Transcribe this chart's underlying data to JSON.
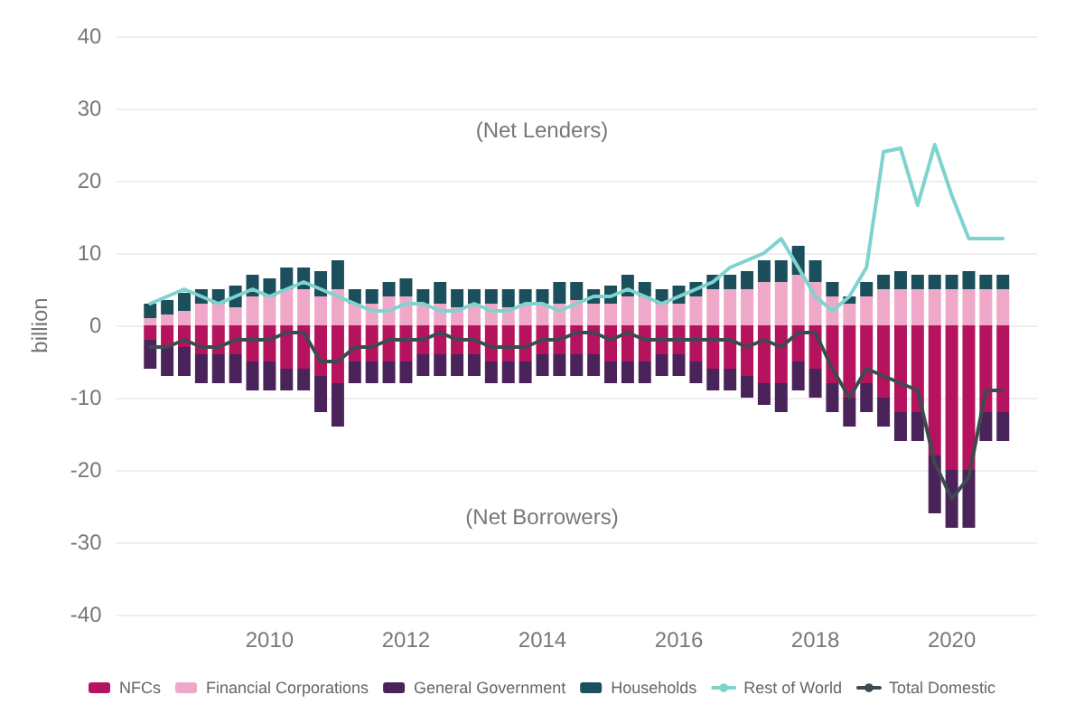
{
  "chart_data": {
    "type": "bar",
    "stacked": true,
    "ylabel": "billion",
    "x": [
      2008.25,
      2008.5,
      2008.75,
      2009,
      2009.25,
      2009.5,
      2009.75,
      2010,
      2010.25,
      2010.5,
      2010.75,
      2011,
      2011.25,
      2011.5,
      2011.75,
      2012,
      2012.25,
      2012.5,
      2012.75,
      2013,
      2013.25,
      2013.5,
      2013.75,
      2014,
      2014.25,
      2014.5,
      2014.75,
      2015,
      2015.25,
      2015.5,
      2015.75,
      2016,
      2016.25,
      2016.5,
      2016.75,
      2017,
      2017.25,
      2017.5,
      2017.75,
      2018,
      2018.25,
      2018.5,
      2018.75,
      2019,
      2019.25,
      2019.5,
      2019.75,
      2020,
      2020.25,
      2020.5,
      2020.75
    ],
    "series": [
      {
        "name": "NFCs",
        "color": "#b5135e",
        "values": [
          -2,
          -3,
          -3,
          -4,
          -4,
          -4,
          -5,
          -5,
          -6,
          -6,
          -7,
          -8,
          -5,
          -5,
          -5,
          -5,
          -4,
          -4,
          -4,
          -4,
          -5,
          -5,
          -5,
          -4,
          -4,
          -4,
          -4,
          -5,
          -5,
          -5,
          -4,
          -4,
          -5,
          -6,
          -6,
          -7,
          -8,
          -8,
          -5,
          -6,
          -8,
          -10,
          -8,
          -10,
          -12,
          -12,
          -18,
          -20,
          -20,
          -12,
          -12
        ]
      },
      {
        "name": "Financial Corporations",
        "color": "#f0a8c8",
        "values": [
          1,
          1.5,
          2,
          3,
          3,
          2.5,
          4,
          4,
          5,
          5,
          4,
          5,
          3,
          3,
          4,
          4,
          3,
          3,
          2.5,
          3,
          3,
          2.5,
          3,
          3,
          3,
          3.5,
          3,
          3,
          4,
          4,
          3,
          3,
          4,
          5,
          5,
          5,
          6,
          6,
          7,
          6,
          4,
          3,
          4,
          5,
          5,
          5,
          5,
          5,
          5,
          5,
          5
        ]
      },
      {
        "name": "General Government",
        "color": "#4a235a",
        "values": [
          -4,
          -4,
          -4,
          -4,
          -4,
          -4,
          -4,
          -4,
          -3,
          -3,
          -5,
          -6,
          -3,
          -3,
          -3,
          -3,
          -3,
          -3,
          -3,
          -3,
          -3,
          -3,
          -3,
          -3,
          -3,
          -3,
          -3,
          -3,
          -3,
          -3,
          -3,
          -3,
          -3,
          -3,
          -3,
          -3,
          -3,
          -4,
          -4,
          -4,
          -4,
          -4,
          -4,
          -4,
          -4,
          -4,
          -8,
          -8,
          -8,
          -4,
          -4
        ]
      },
      {
        "name": "Households",
        "color": "#1b4f5c",
        "values": [
          2,
          2,
          2.5,
          2,
          2,
          3,
          3,
          2.5,
          3,
          3,
          3.5,
          4,
          2,
          2,
          2,
          2.5,
          2,
          3,
          2.5,
          2,
          2,
          2.5,
          2,
          2,
          3,
          2.5,
          2,
          2.5,
          3,
          2,
          2,
          2.5,
          2,
          2,
          2,
          2.5,
          3,
          3,
          4,
          3,
          2,
          1,
          2,
          2,
          2.5,
          2,
          2,
          2,
          2.5,
          2,
          2
        ]
      },
      {
        "name": "Rest of World",
        "type": "line",
        "color": "#7fd3cf",
        "values": [
          3,
          4,
          5,
          4,
          3,
          4,
          5,
          4,
          5,
          6,
          5,
          4,
          3,
          2,
          2,
          3,
          3,
          2,
          2,
          3,
          2,
          2,
          3,
          3,
          2,
          3,
          4,
          4,
          5,
          4,
          3,
          4,
          5,
          6,
          8,
          9,
          10,
          12,
          8,
          4,
          2,
          4,
          8,
          24,
          24.5,
          16.6,
          25,
          18,
          12,
          12,
          12
        ]
      },
      {
        "name": "Total Domestic",
        "type": "line",
        "color": "#3d4a4f",
        "values": [
          -3,
          -3,
          -2,
          -3,
          -3,
          -2,
          -2,
          -2,
          -1,
          -1,
          -5,
          -5,
          -3,
          -3,
          -2,
          -2,
          -2,
          -1,
          -2,
          -2,
          -3,
          -3,
          -3,
          -2,
          -2,
          -1,
          -1,
          -2,
          -1,
          -2,
          -2,
          -2,
          -2,
          -2,
          -2,
          -3,
          -2,
          -3,
          -1,
          -1,
          -6,
          -10,
          -6,
          -7,
          -8,
          -9,
          -19,
          -24,
          -21,
          -9,
          -9
        ]
      }
    ],
    "xlim": [
      2007.75,
      2021.25
    ],
    "xticks": [
      2010,
      2012,
      2014,
      2016,
      2018,
      2020
    ],
    "ylim": [
      -40,
      40
    ],
    "yticks": [
      -40,
      -30,
      -20,
      -10,
      0,
      10,
      20,
      30,
      40
    ],
    "annotations": [
      "(Net Lenders)",
      "(Net Borrowers)"
    ],
    "grid": "y",
    "legend": "bottom",
    "marker": "none",
    "line_style": "solid"
  }
}
